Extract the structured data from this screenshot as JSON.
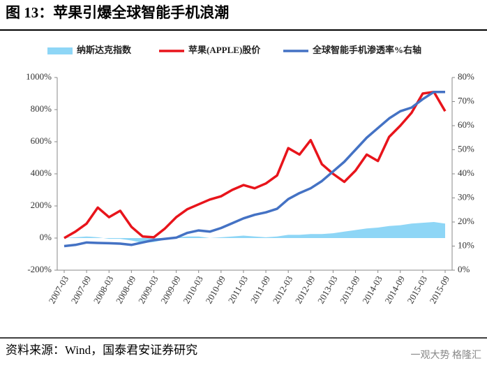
{
  "chart_data": {
    "type": "line",
    "title": "图 13：苹果引爆全球智能手机浪潮",
    "source": "资料来源：Wind，国泰君安证券研究",
    "watermark": "一观大势 格隆汇",
    "categories": [
      "2007-03",
      null,
      "2007-09",
      null,
      "2008-03",
      null,
      "2008-09",
      null,
      "2009-03",
      null,
      "2009-09",
      null,
      "2010-03",
      null,
      "2010-09",
      null,
      "2011-03",
      null,
      "2011-09",
      null,
      "2012-03",
      null,
      "2012-09",
      null,
      "2013-03",
      null,
      "2013-09",
      null,
      "2014-03",
      null,
      "2014-09",
      null,
      "2015-03",
      null,
      "2015-09"
    ],
    "series": [
      {
        "name": "纳斯达克指数",
        "type": "area",
        "color": "#8ed6f6",
        "values": [
          0,
          5,
          10,
          5,
          -5,
          -5,
          -15,
          -30,
          -25,
          -10,
          5,
          10,
          10,
          0,
          5,
          10,
          15,
          10,
          5,
          10,
          20,
          20,
          25,
          25,
          30,
          40,
          50,
          60,
          65,
          75,
          80,
          90,
          95,
          100,
          90
        ]
      },
      {
        "name": "苹果(APPLE)股价",
        "type": "line",
        "color": "#e8141b",
        "values": [
          0,
          40,
          90,
          190,
          130,
          170,
          70,
          10,
          5,
          60,
          130,
          180,
          210,
          240,
          260,
          300,
          330,
          310,
          340,
          390,
          560,
          520,
          610,
          460,
          400,
          350,
          420,
          520,
          480,
          630,
          700,
          780,
          900,
          910,
          790
        ]
      },
      {
        "name": "全球智能手机渗透率%右轴",
        "type": "line",
        "axis": "y2",
        "color": "#4472c4",
        "values": [
          10,
          10.5,
          11.5,
          11.3,
          11.2,
          11,
          10.5,
          11.5,
          12.5,
          13,
          13.5,
          15.5,
          16.5,
          16,
          17.5,
          19.5,
          21.5,
          23,
          24,
          25.5,
          29.5,
          32,
          34,
          37,
          41,
          45,
          50,
          55,
          59,
          63,
          66,
          67.5,
          71,
          74,
          74
        ]
      }
    ],
    "ylim": [
      -200,
      1000
    ],
    "yticks": [
      {
        "value": -200,
        "label": "-200%"
      },
      {
        "value": 0,
        "label": "0%"
      },
      {
        "value": 200,
        "label": "200%"
      },
      {
        "value": 400,
        "label": "400%"
      },
      {
        "value": 600,
        "label": "600%"
      },
      {
        "value": 800,
        "label": "800%"
      },
      {
        "value": 1000,
        "label": "1000%"
      }
    ],
    "y2lim": [
      0,
      80
    ],
    "y2ticks": [
      {
        "value": 0,
        "label": "0%"
      },
      {
        "value": 10,
        "label": "10%"
      },
      {
        "value": 20,
        "label": "20%"
      },
      {
        "value": 30,
        "label": "30%"
      },
      {
        "value": 40,
        "label": "40%"
      },
      {
        "value": 50,
        "label": "50%"
      },
      {
        "value": 60,
        "label": "60%"
      },
      {
        "value": 70,
        "label": "70%"
      },
      {
        "value": 80,
        "label": "80%"
      }
    ],
    "legend": "top"
  }
}
